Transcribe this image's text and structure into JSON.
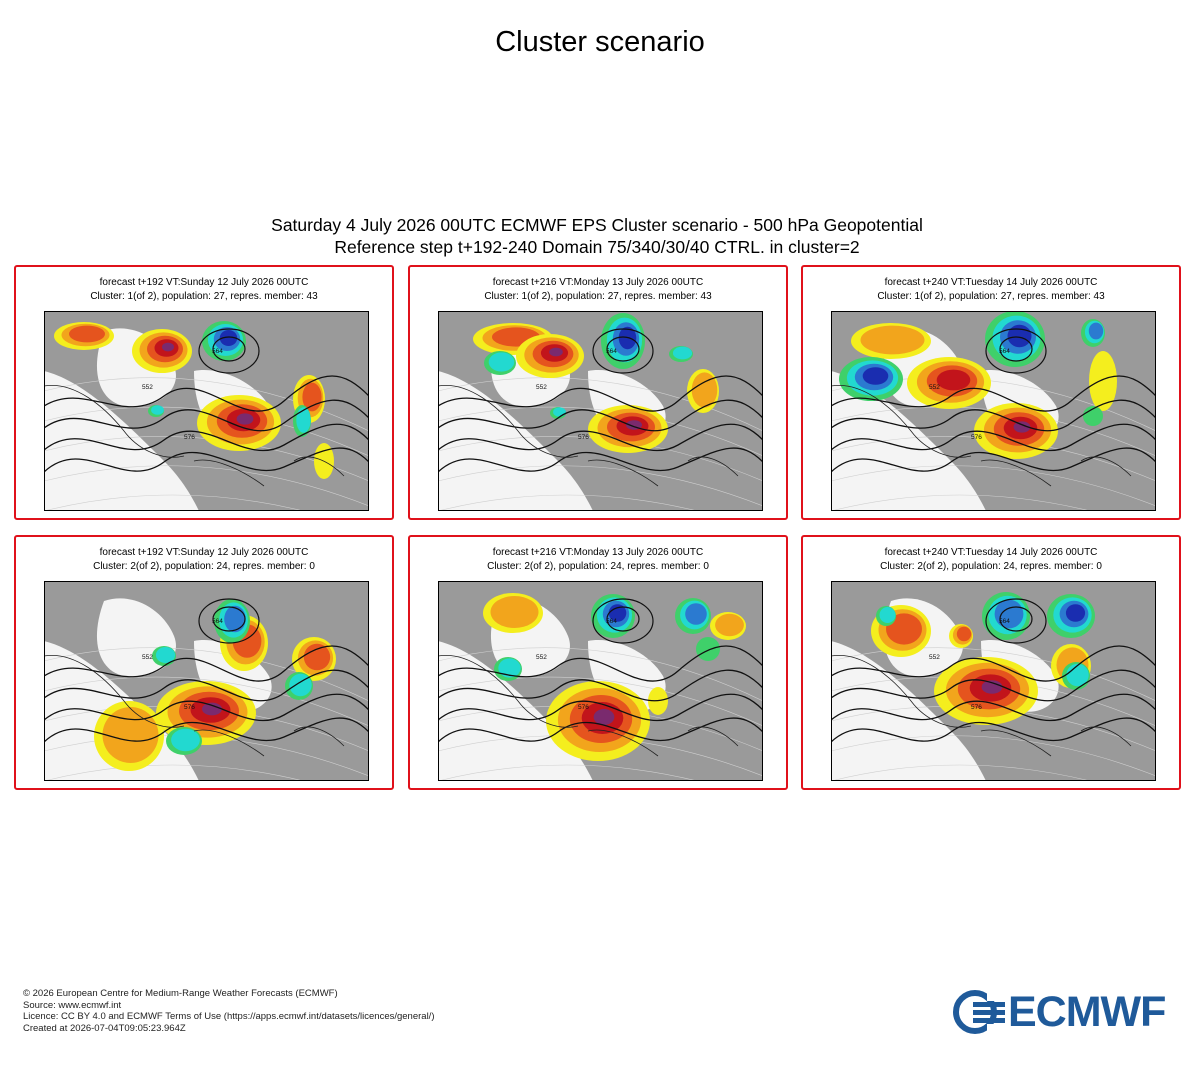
{
  "page": {
    "title": "Cluster scenario"
  },
  "figure": {
    "heading_line1": "Saturday 4 July 2026 00UTC ECMWF EPS Cluster scenario - 500 hPa Geopotential",
    "heading_line2": "Reference step t+192-240 Domain 75/340/30/40 CTRL. in cluster=2"
  },
  "panels": [
    {
      "forecast": "forecast t+192 VT:Sunday 12 July 2026 00UTC",
      "cluster": "Cluster: 1(of 2), population: 27, repres. member: 43",
      "contour_labels": [
        "576",
        "564",
        "552"
      ]
    },
    {
      "forecast": "forecast t+216 VT:Monday 13 July 2026 00UTC",
      "cluster": "Cluster: 1(of 2), population: 27, repres. member: 43",
      "contour_labels": [
        "576",
        "564",
        "552"
      ]
    },
    {
      "forecast": "forecast t+240 VT:Tuesday 14 July 2026 00UTC",
      "cluster": "Cluster: 1(of 2), population: 27, repres. member: 43",
      "contour_labels": [
        "576",
        "564",
        "552"
      ]
    },
    {
      "forecast": "forecast t+192 VT:Sunday 12 July 2026 00UTC",
      "cluster": "Cluster: 2(of 2), population: 24, repres. member: 0",
      "contour_labels": [
        "576",
        "564",
        "552"
      ]
    },
    {
      "forecast": "forecast t+216 VT:Monday 13 July 2026 00UTC",
      "cluster": "Cluster: 2(of 2), population: 24, repres. member: 0",
      "contour_labels": [
        "576",
        "564",
        "552"
      ]
    },
    {
      "forecast": "forecast t+240 VT:Tuesday 14 July 2026 00UTC",
      "cluster": "Cluster: 2(of 2), population: 24, repres. member: 0",
      "contour_labels": [
        "576",
        "564",
        "552"
      ]
    }
  ],
  "colors": {
    "panel_border": "#e0111b",
    "land": "#9a9a9a",
    "sea": "#f4f4f4",
    "anomaly_positive": [
      "#f4ee1e",
      "#f2a51c",
      "#e5541e",
      "#c2141b",
      "#7a2a6e"
    ],
    "anomaly_negative": [
      "#3fd06a",
      "#22d9d0",
      "#2b7ad0",
      "#1a2db0"
    ],
    "logo": "#1f5a9a"
  },
  "footer": {
    "copyright": "© 2026 European Centre for Medium-Range Weather Forecasts (ECMWF)",
    "source": "Source: www.ecmwf.int",
    "licence": "Licence: CC BY 4.0 and ECMWF Terms of Use (https://apps.ecmwf.int/datasets/licences/general/)",
    "created": "Created at 2026-07-04T09:05:23.964Z"
  },
  "logo": {
    "text": "ECMWF",
    "icon": "ecmwf-logo-icon"
  }
}
